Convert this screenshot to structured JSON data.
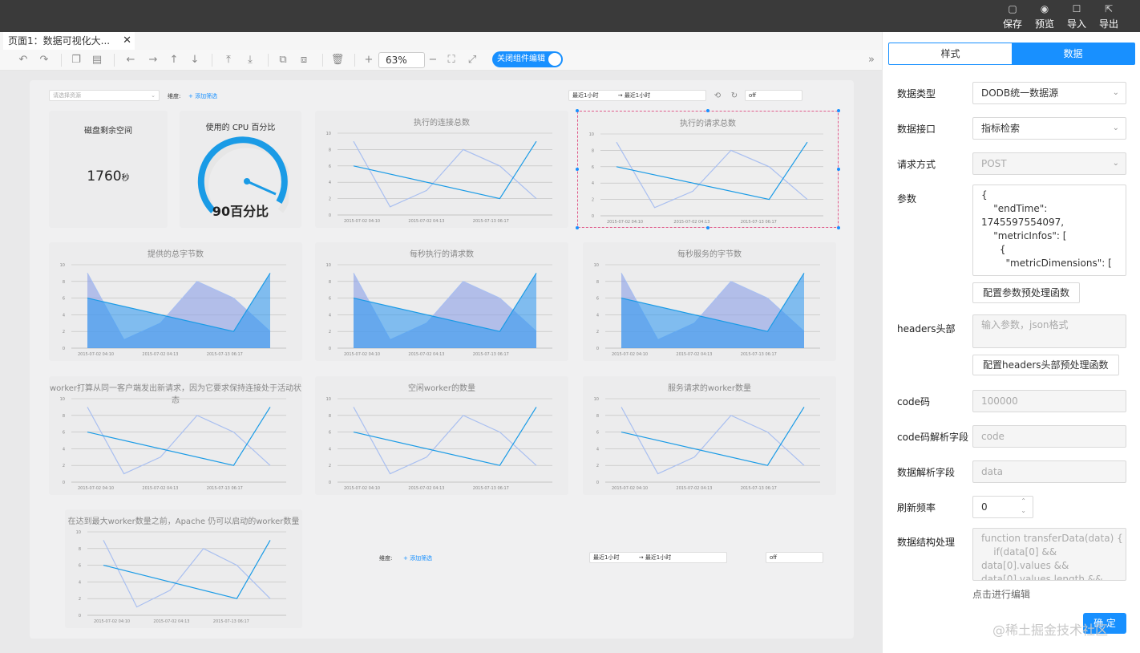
{
  "topbar": {
    "save": "保存",
    "preview": "预览",
    "import": "导入",
    "export": "导出"
  },
  "tab": {
    "title": "页面1：数据可视化大...",
    "close": "✕"
  },
  "toolbar": {
    "zoom": "63%",
    "toggle_label": "关闭组件编辑"
  },
  "filters": {
    "top_select_placeholder": "请选择资源",
    "dim_label": "维度:",
    "add_filter": "+ 添加筛选",
    "range_start": "最近1小时",
    "range_sep": "→",
    "range_end": "最近1小时",
    "refresh_value": "off"
  },
  "cards": {
    "disk": {
      "title": "磁盘剩余空间",
      "value": "1760",
      "unit": "秒"
    },
    "cpu": {
      "title": "使用的 CPU 百分比",
      "value": "90百分比"
    },
    "c1": {
      "title": "执行的连接总数"
    },
    "c2": {
      "title": "执行的请求总数"
    },
    "c3": {
      "title": "提供的总字节数"
    },
    "c4": {
      "title": "每秒执行的请求数"
    },
    "c5": {
      "title": "每秒服务的字节数"
    },
    "c6": {
      "title": "worker打算从同一客户端发出新请求，因为它要求保持连接处于活动状态"
    },
    "c7": {
      "title": "空闲worker的数量"
    },
    "c8": {
      "title": "服务请求的worker数量"
    },
    "c9": {
      "title": "在达到最大worker数量之前，Apache 仍可以启动的worker数量"
    }
  },
  "chart_data": {
    "type": "line",
    "x_ticks": [
      "2015-07-02 04:10",
      "2015-07-02 04:13",
      "2015-07-13 06:17"
    ],
    "y_ticks": [
      "0",
      "2",
      "4",
      "6",
      "8",
      "10"
    ],
    "ylim": [
      0,
      10
    ],
    "series": [
      {
        "values": [
          9,
          1,
          3,
          8,
          6,
          2
        ]
      },
      {
        "values": [
          6,
          5,
          4,
          3,
          2,
          9
        ]
      }
    ]
  },
  "rpanel": {
    "tab_style": "样式",
    "tab_data": "数据",
    "data_type_label": "数据类型",
    "data_type": "DODB统一数据源",
    "api_label": "数据接口",
    "api": "指标检索",
    "method_label": "请求方式",
    "method": "POST",
    "params_label": "参数",
    "params": "{\n    \"endTime\":\n1745597554097,\n    \"metricInfos\": [\n      {\n        \"metricDimensions\": [",
    "params_btn": "配置参数预处理函数",
    "headers_label": "headers头部",
    "headers_placeholder": "输入参数，json格式",
    "headers_btn": "配置headers头部预处理函数",
    "code_label": "code码",
    "code": "100000",
    "code_field_label": "code码解析字段",
    "code_field": "code",
    "data_field_label": "数据解析字段",
    "data_field": "data",
    "refresh_label": "刷新频率",
    "refresh": "0",
    "struct_label": "数据结构处理",
    "struct_code": "function transferData(data) {\n    if(data[0] &&\ndata[0].values &&\ndata[0].values.length &&",
    "edit_hint": "点击进行编辑",
    "ok": "确 定"
  },
  "watermark": "@稀土掘金技术社区"
}
